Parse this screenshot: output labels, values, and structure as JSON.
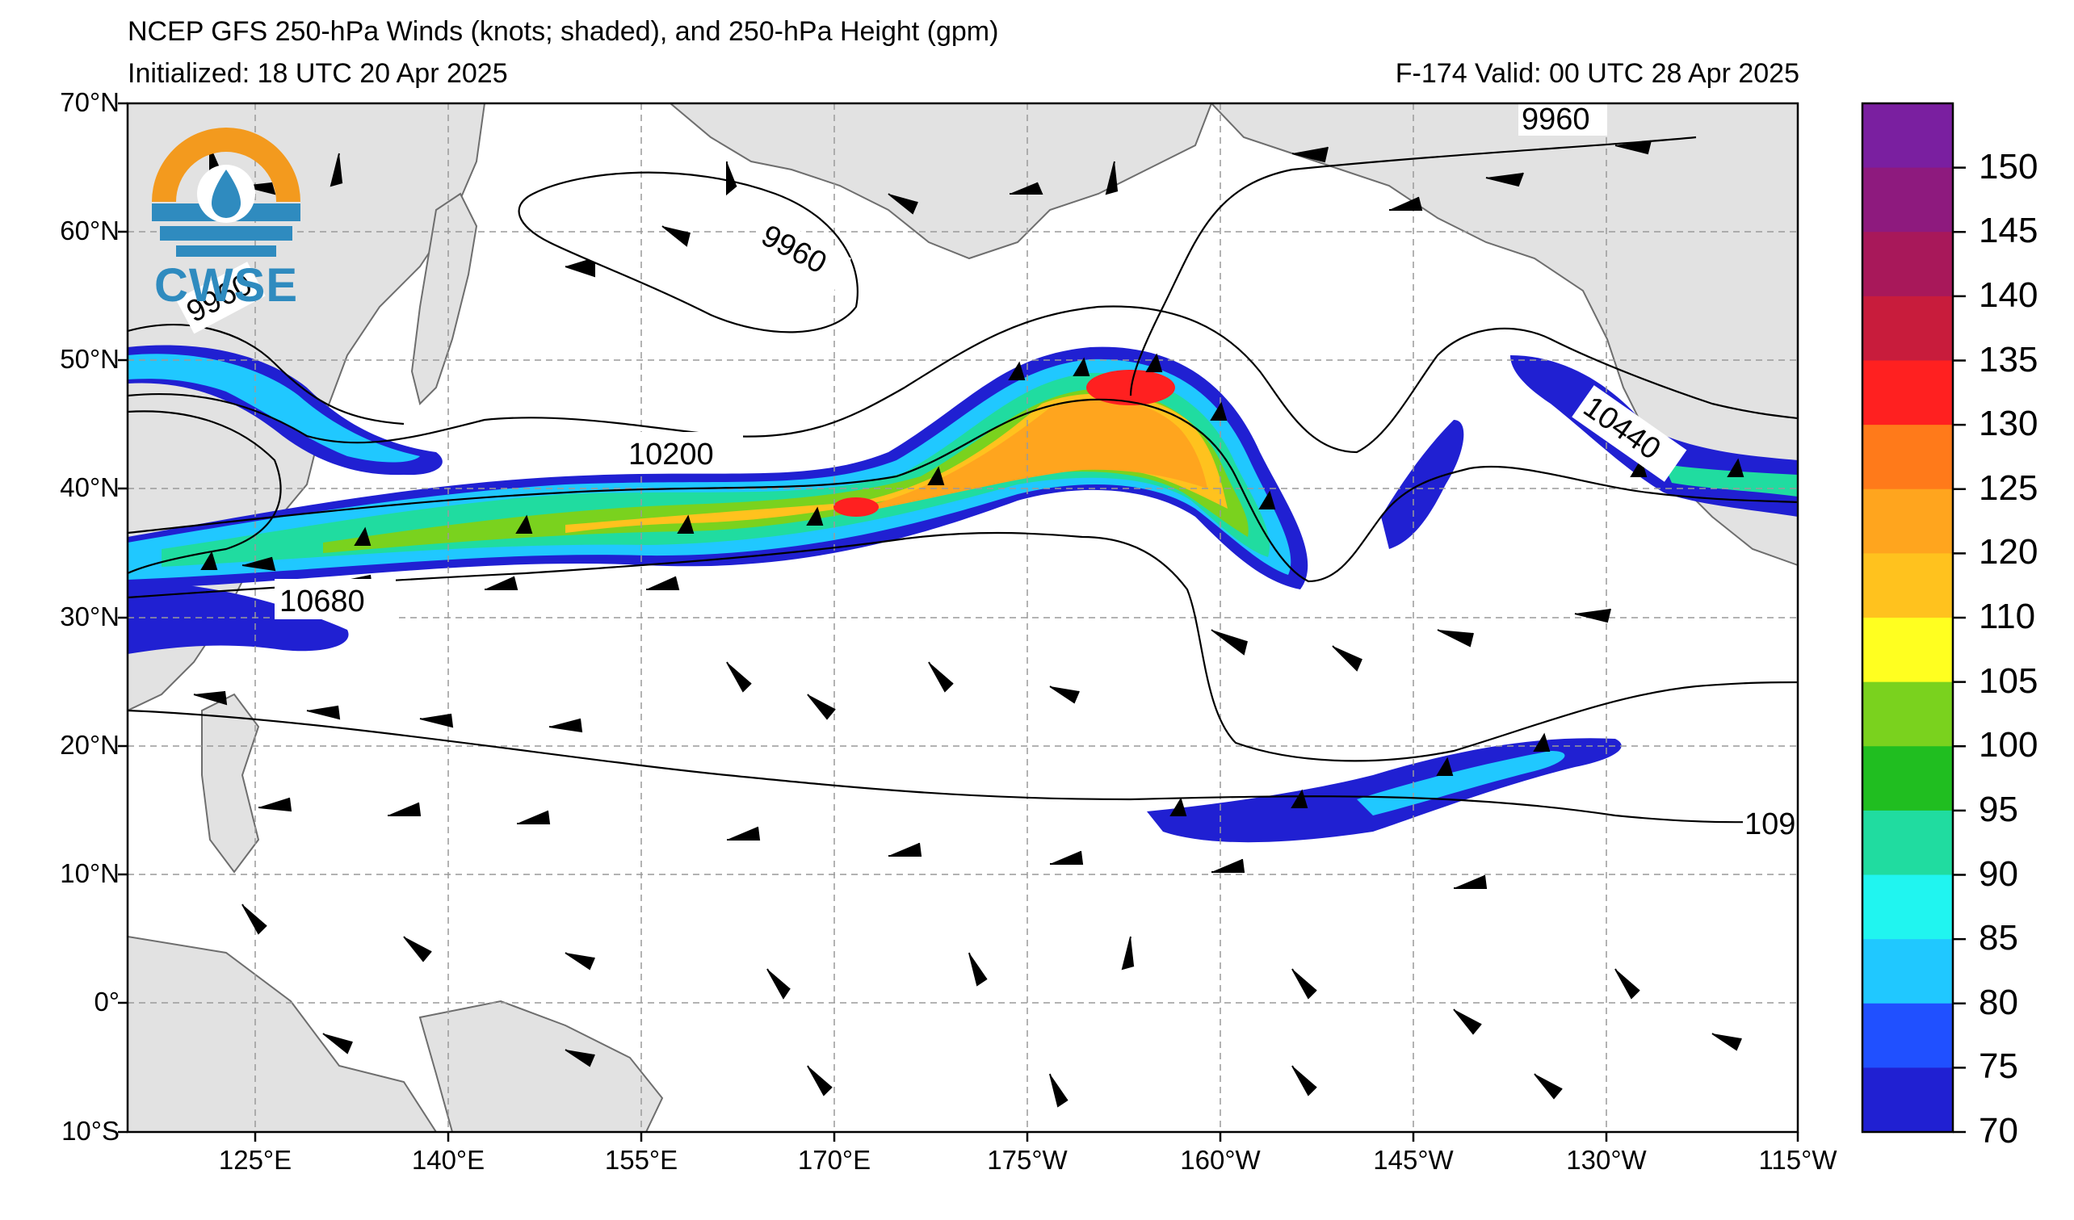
{
  "title": {
    "line1": "NCEP GFS 250-hPa Winds (knots; shaded), and 250-hPa Height (gpm)",
    "line2_left": "Initialized: 18 UTC 20 Apr 2025",
    "line2_right": "F-174  Valid: 00 UTC 28 Apr 2025"
  },
  "logo": {
    "text": "CWSE"
  },
  "axes": {
    "lat_labels": [
      "70°N",
      "60°N",
      "50°N",
      "40°N",
      "30°N",
      "20°N",
      "10°N",
      "0°",
      "10°S"
    ],
    "lon_labels": [
      "125°E",
      "140°E",
      "155°E",
      "170°E",
      "175°W",
      "160°W",
      "145°W",
      "130°W",
      "115°W"
    ]
  },
  "colorbar": {
    "labels": [
      "150",
      "145",
      "140",
      "135",
      "130",
      "125",
      "120",
      "110",
      "105",
      "100",
      "95",
      "90",
      "85",
      "80",
      "75",
      "70"
    ],
    "colors": [
      "#7a1fa0",
      "#8e1a7e",
      "#a8185a",
      "#c81c3c",
      "#ff2020",
      "#ff7a1a",
      "#ffa51e",
      "#ffc21e",
      "#ffff20",
      "#7ad21e",
      "#20be20",
      "#20dca0",
      "#20f5f0",
      "#20c8ff",
      "#2050ff",
      "#2020d2"
    ]
  },
  "contour_labels": [
    "9960",
    "9960",
    "9960",
    "10200",
    "10680",
    "10440",
    "109"
  ],
  "map_colors": {
    "land": "#e2e2e2",
    "coast": "#6e6e6e",
    "grid": "#9a9a9a"
  }
}
